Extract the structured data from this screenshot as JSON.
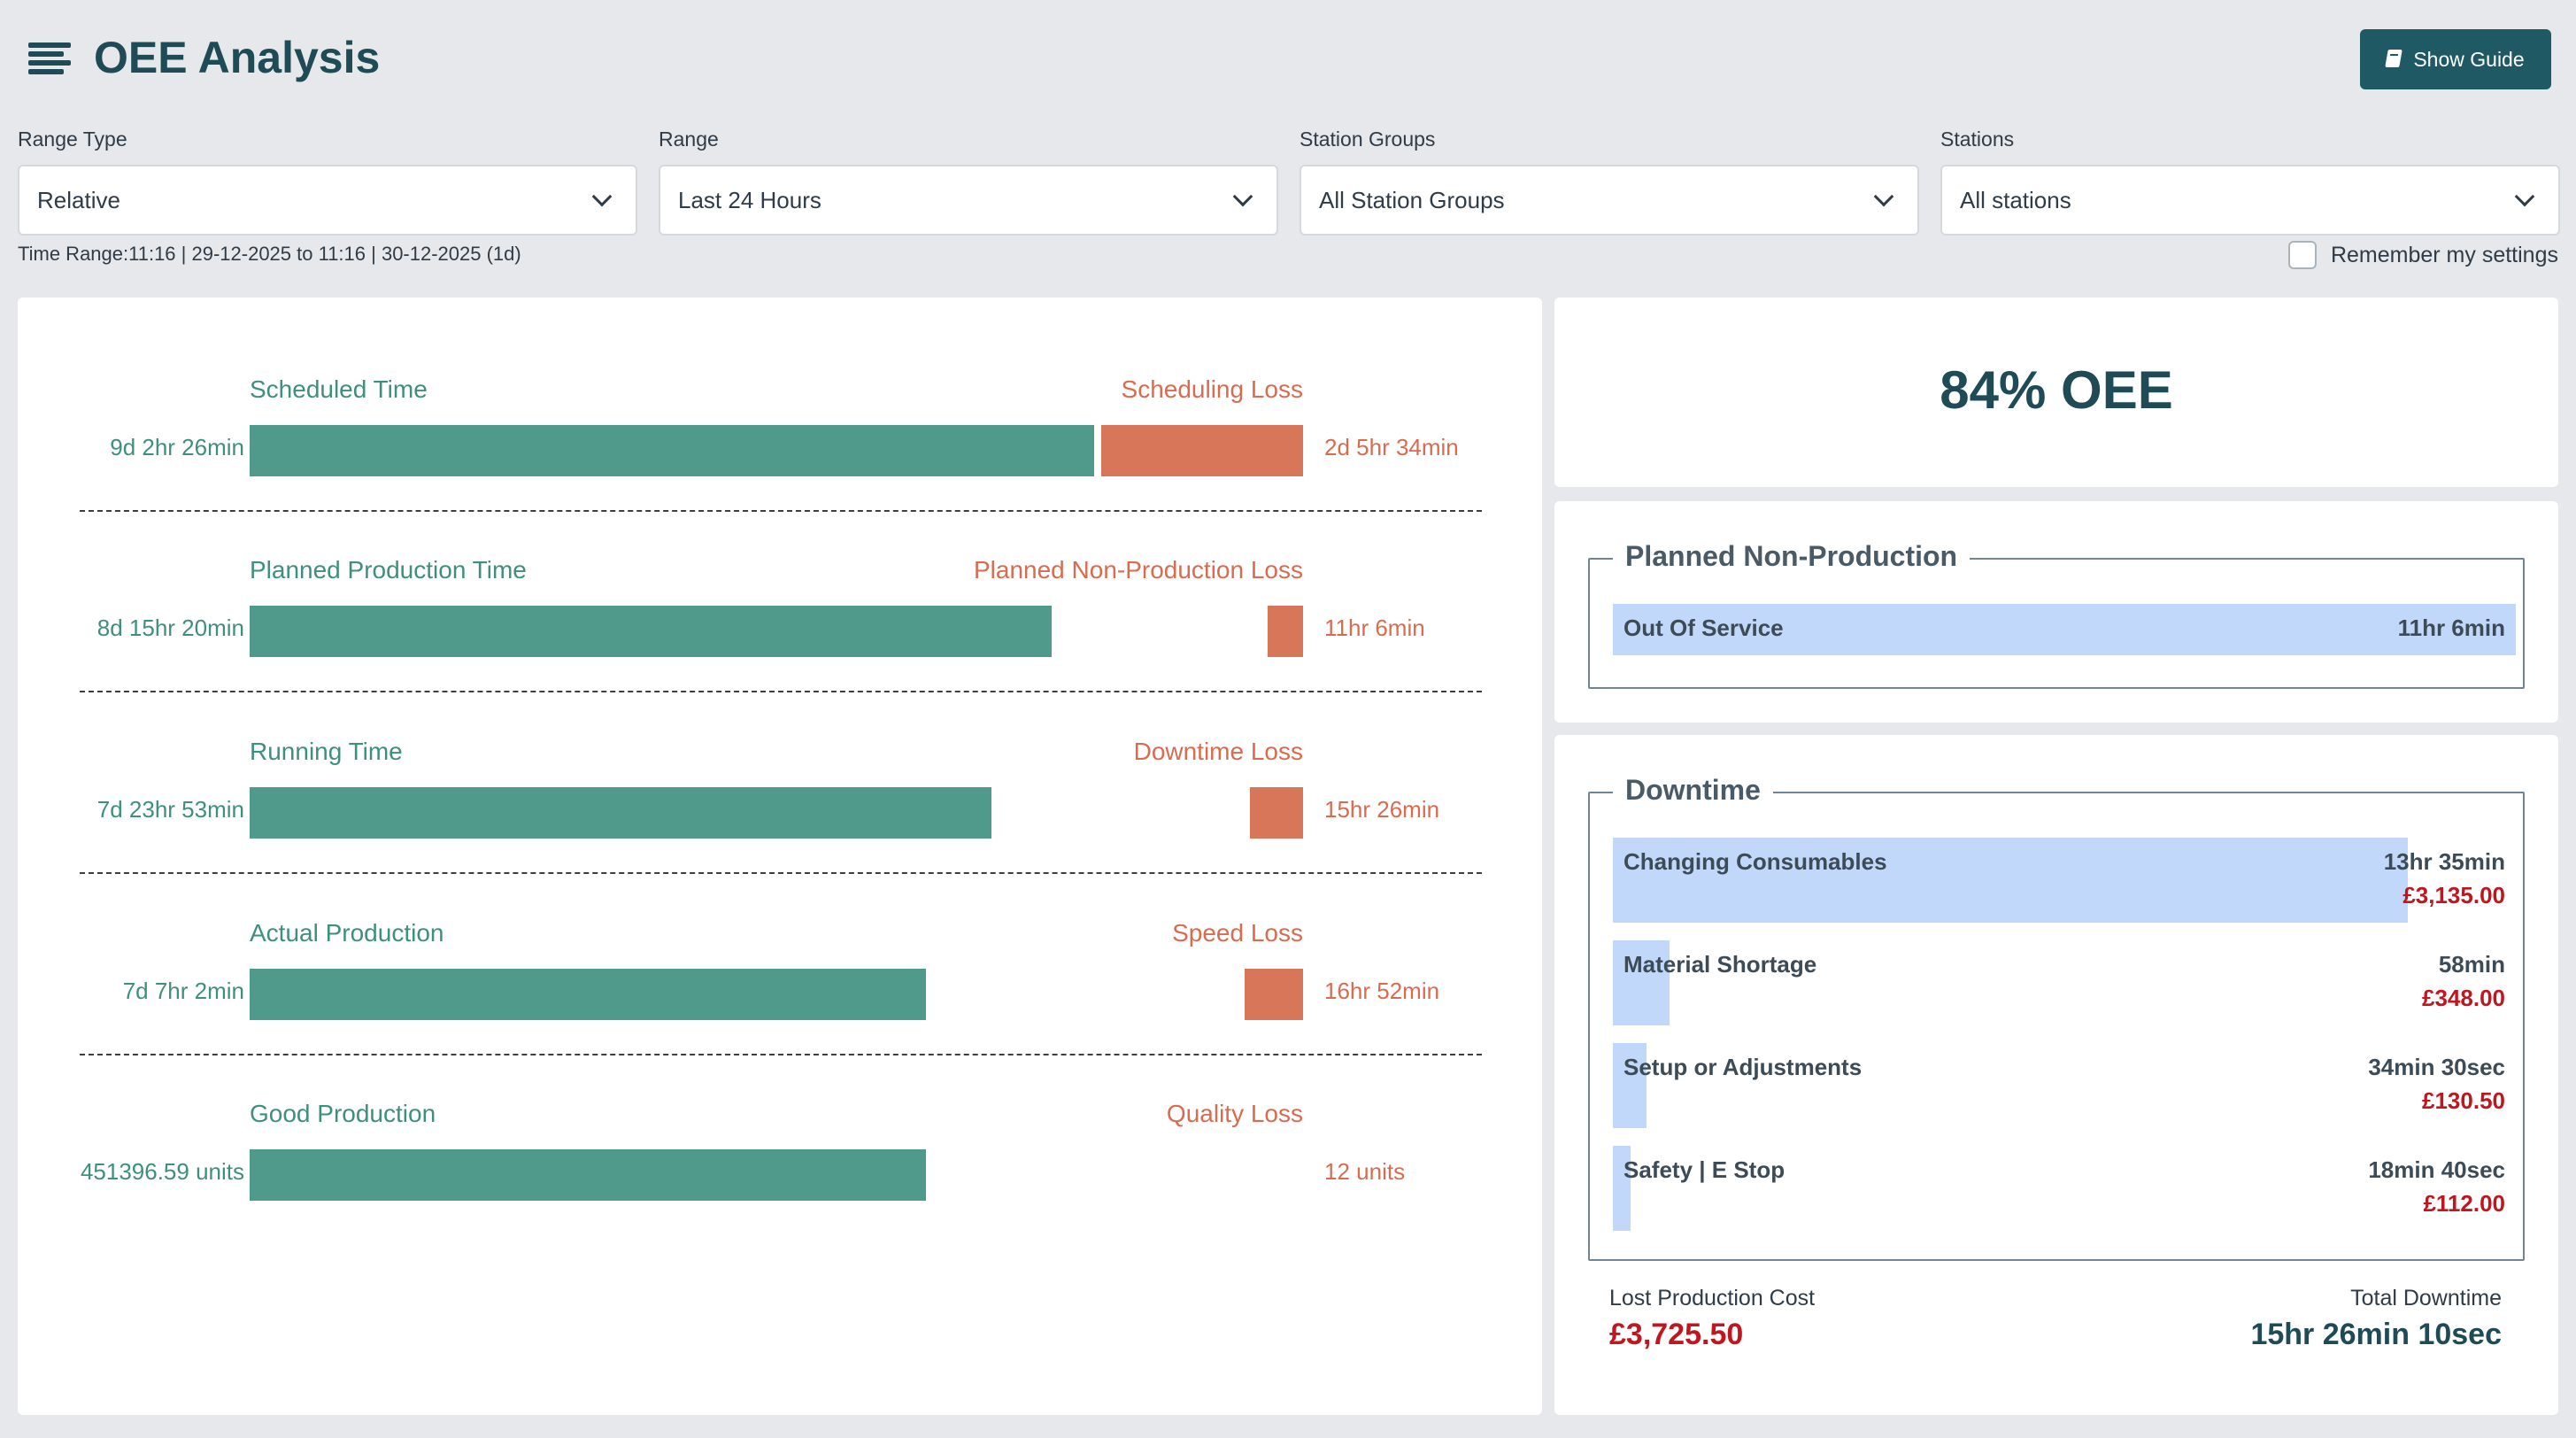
{
  "header": {
    "title": "OEE Analysis",
    "guide_button": "Show Guide"
  },
  "filters": [
    {
      "label": "Range Type",
      "value": "Relative"
    },
    {
      "label": "Range",
      "value": "Last 24 Hours"
    },
    {
      "label": "Station Groups",
      "value": "All Station Groups"
    },
    {
      "label": "Stations",
      "value": "All stations"
    }
  ],
  "time_range": "Time Range:11:16 | 29-12-2025 to 11:16 | 30-12-2025 (1d)",
  "remember": {
    "label": "Remember my settings",
    "checked": false
  },
  "waterfall": [
    {
      "label": "Scheduled Time",
      "value": "9d 2hr 26min",
      "loss_label": "Scheduling Loss",
      "loss_value": "2d 5hr 34min"
    },
    {
      "label": "Planned Production Time",
      "value": "8d 15hr 20min",
      "loss_label": "Planned Non-Production Loss",
      "loss_value": "11hr 6min"
    },
    {
      "label": "Running Time",
      "value": "7d 23hr 53min",
      "loss_label": "Downtime Loss",
      "loss_value": "15hr 26min"
    },
    {
      "label": "Actual Production",
      "value": "7d 7hr 2min",
      "loss_label": "Speed Loss",
      "loss_value": "16hr 52min"
    },
    {
      "label": "Good Production",
      "value": "451396.59 units",
      "loss_label": "Quality Loss",
      "loss_value": "12 units"
    }
  ],
  "oee": {
    "value": "84% OEE"
  },
  "planned_non_production": {
    "title": "Planned Non-Production",
    "items": [
      {
        "name": "Out Of Service",
        "time": "11hr 6min",
        "fraction": 1.0
      }
    ]
  },
  "downtime": {
    "title": "Downtime",
    "items": [
      {
        "name": "Changing Consumables",
        "time": "13hr 35min",
        "cost": "£3,135.00",
        "fraction": 0.88
      },
      {
        "name": "Material Shortage",
        "time": "58min",
        "cost": "£348.00",
        "fraction": 0.063
      },
      {
        "name": "Setup or Adjustments",
        "time": "34min 30sec",
        "cost": "£130.50",
        "fraction": 0.037
      },
      {
        "name": "Safety | E Stop",
        "time": "18min 40sec",
        "cost": "£112.00",
        "fraction": 0.02
      }
    ],
    "lost_cost_label": "Lost Production Cost",
    "lost_cost_value": "£3,725.50",
    "total_label": "Total Downtime",
    "total_value": "15hr 26min 10sec"
  },
  "colors": {
    "primary": "#1e4b55",
    "good": "#4f9a8a",
    "loss": "#d8765a",
    "bar_blue": "#c2d8fa",
    "cost_red": "#c0161f"
  }
}
